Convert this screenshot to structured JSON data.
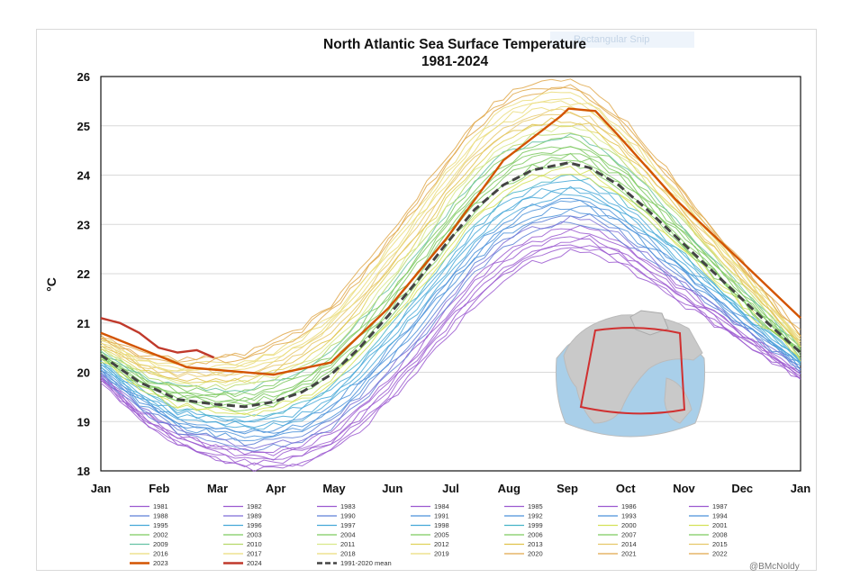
{
  "chart_data": {
    "type": "line",
    "title": "North Atlantic Sea Surface Temperature",
    "subtitle": "1981-2024",
    "ylabel": "°C",
    "xlabel": "",
    "ylim": [
      18,
      26
    ],
    "yticks": [
      18,
      19,
      20,
      21,
      22,
      23,
      24,
      25,
      26
    ],
    "x_tick_labels": [
      "Jan",
      "Feb",
      "Mar",
      "Apr",
      "May",
      "Jun",
      "Jul",
      "Aug",
      "Sep",
      "Oct",
      "Nov",
      "Dec",
      "Jan"
    ],
    "grid": "horizontal",
    "legend_position": "bottom",
    "series": [
      {
        "name": "2023",
        "color": "#d35400",
        "points": [
          [
            0,
            20.8
          ],
          [
            45,
            20.1
          ],
          [
            90,
            19.95
          ],
          [
            120,
            20.2
          ],
          [
            150,
            21.3
          ],
          [
            180,
            22.7
          ],
          [
            210,
            24.3
          ],
          [
            240,
            25.2
          ],
          [
            244,
            25.35
          ],
          [
            258,
            25.3
          ],
          [
            270,
            24.8
          ],
          [
            300,
            23.5
          ],
          [
            330,
            22.4
          ],
          [
            365,
            21.1
          ]
        ]
      },
      {
        "name": "2024",
        "color": "#c0392b",
        "points": [
          [
            0,
            21.1
          ],
          [
            10,
            21.0
          ],
          [
            20,
            20.8
          ],
          [
            30,
            20.5
          ],
          [
            40,
            20.4
          ],
          [
            50,
            20.45
          ],
          [
            59,
            20.3
          ]
        ]
      },
      {
        "name": "1991-2020 mean",
        "color": "#444444",
        "points": [
          [
            0,
            20.35
          ],
          [
            20,
            19.8
          ],
          [
            40,
            19.45
          ],
          [
            60,
            19.35
          ],
          [
            75,
            19.3
          ],
          [
            90,
            19.4
          ],
          [
            105,
            19.6
          ],
          [
            120,
            19.95
          ],
          [
            135,
            20.5
          ],
          [
            150,
            21.15
          ],
          [
            165,
            21.85
          ],
          [
            180,
            22.6
          ],
          [
            195,
            23.3
          ],
          [
            210,
            23.8
          ],
          [
            225,
            24.1
          ],
          [
            244,
            24.25
          ],
          [
            255,
            24.15
          ],
          [
            270,
            23.8
          ],
          [
            285,
            23.3
          ],
          [
            300,
            22.75
          ],
          [
            315,
            22.2
          ],
          [
            330,
            21.65
          ],
          [
            345,
            21.1
          ],
          [
            365,
            20.4
          ]
        ]
      }
    ],
    "legend": [
      "1981",
      "1982",
      "1983",
      "1984",
      "1985",
      "1986",
      "1987",
      "1988",
      "1989",
      "1990",
      "1991",
      "1992",
      "1993",
      "1994",
      "1995",
      "1996",
      "1997",
      "1998",
      "1999",
      "2000",
      "2001",
      "2002",
      "2003",
      "2004",
      "2005",
      "2006",
      "2007",
      "2008",
      "2009",
      "2010",
      "2011",
      "2012",
      "2013",
      "2014",
      "2015",
      "2016",
      "2017",
      "2018",
      "2019",
      "2020",
      "2021",
      "2022",
      "2023",
      "2024",
      "1991-2020 mean"
    ],
    "legend_colors": {
      "1981": "#9b59d0",
      "1982": "#9b59d0",
      "1983": "#9b59d0",
      "1984": "#9b59d0",
      "1985": "#9b59d0",
      "1986": "#9b59d0",
      "1987": "#9b59d0",
      "1988": "#5d7fd6",
      "1989": "#7d6cd6",
      "1990": "#5d7fd6",
      "1991": "#4a90d9",
      "1992": "#4a90d9",
      "1993": "#4a90d9",
      "1994": "#4a90d9",
      "1995": "#46a8d8",
      "1996": "#46a8d8",
      "1997": "#46a8d8",
      "1998": "#46a8d8",
      "1999": "#46b4c8",
      "2000": "#d4e157",
      "2001": "#d4e157",
      "2002": "#7cc95f",
      "2003": "#7cc95f",
      "2004": "#7cc95f",
      "2005": "#7cc95f",
      "2006": "#7cc95f",
      "2007": "#7cc95f",
      "2008": "#7cc95f",
      "2009": "#66c2a5",
      "2010": "#b5d86a",
      "2011": "#d9e88a",
      "2012": "#e0d25a",
      "2013": "#e0c24a",
      "2014": "#e6c86a",
      "2015": "#e6c86a",
      "2016": "#eadc7a",
      "2017": "#eadc7a",
      "2018": "#eadc7a",
      "2019": "#eadc7a",
      "2020": "#e0a84a",
      "2021": "#e0a84a",
      "2022": "#e0a84a",
      "2023": "#d35400",
      "2024": "#c0392b",
      "1991-2020 mean": "#444444"
    }
  },
  "credit": "@BMcNoldy",
  "snip_label": "Rectangular Snip"
}
